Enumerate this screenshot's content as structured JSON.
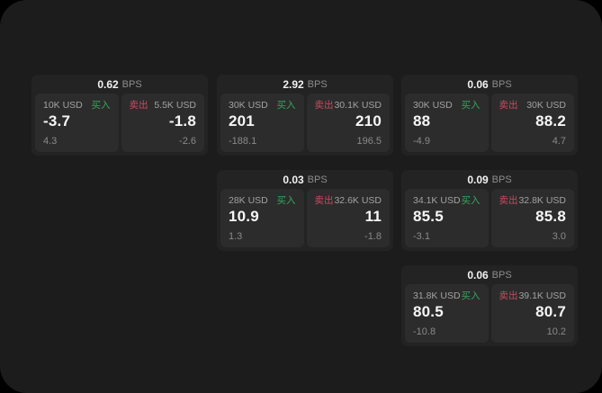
{
  "app": {
    "name": "fx-quote-board"
  },
  "colors": {
    "panel_bg": "#1c1c1c",
    "card_bg": "#232323",
    "subcard_bg": "#2c2c2c",
    "buy_green": "#3aa35e",
    "sell_red": "#c74b5e"
  },
  "labels": {
    "buy": "买入",
    "sell": "卖出",
    "bps": "BPS"
  },
  "cards": [
    {
      "bps": "0.62",
      "buy": {
        "amount": "10K USD",
        "price": "-3.7",
        "delta": "4.3"
      },
      "sell": {
        "amount": "5.5K USD",
        "price": "-1.8",
        "delta": "-2.6"
      }
    },
    {
      "bps": "2.92",
      "buy": {
        "amount": "30K USD",
        "price": "201",
        "delta": "-188.1"
      },
      "sell": {
        "amount": "30.1K USD",
        "price": "210",
        "delta": "196.5"
      }
    },
    {
      "bps": "0.06",
      "buy": {
        "amount": "30K USD",
        "price": "88",
        "delta": "-4.9"
      },
      "sell": {
        "amount": "30K USD",
        "price": "88.2",
        "delta": "4.7"
      }
    },
    {
      "bps": "0.03",
      "buy": {
        "amount": "28K USD",
        "price": "10.9",
        "delta": "1.3"
      },
      "sell": {
        "amount": "32.6K USD",
        "price": "11",
        "delta": "-1.8"
      }
    },
    {
      "bps": "0.09",
      "buy": {
        "amount": "34.1K USD",
        "price": "85.5",
        "delta": "-3.1"
      },
      "sell": {
        "amount": "32.8K USD",
        "price": "85.8",
        "delta": "3.0"
      }
    },
    {
      "bps": "0.06",
      "buy": {
        "amount": "31.8K USD",
        "price": "80.5",
        "delta": "-10.8"
      },
      "sell": {
        "amount": "39.1K USD",
        "price": "80.7",
        "delta": "10.2"
      }
    }
  ]
}
